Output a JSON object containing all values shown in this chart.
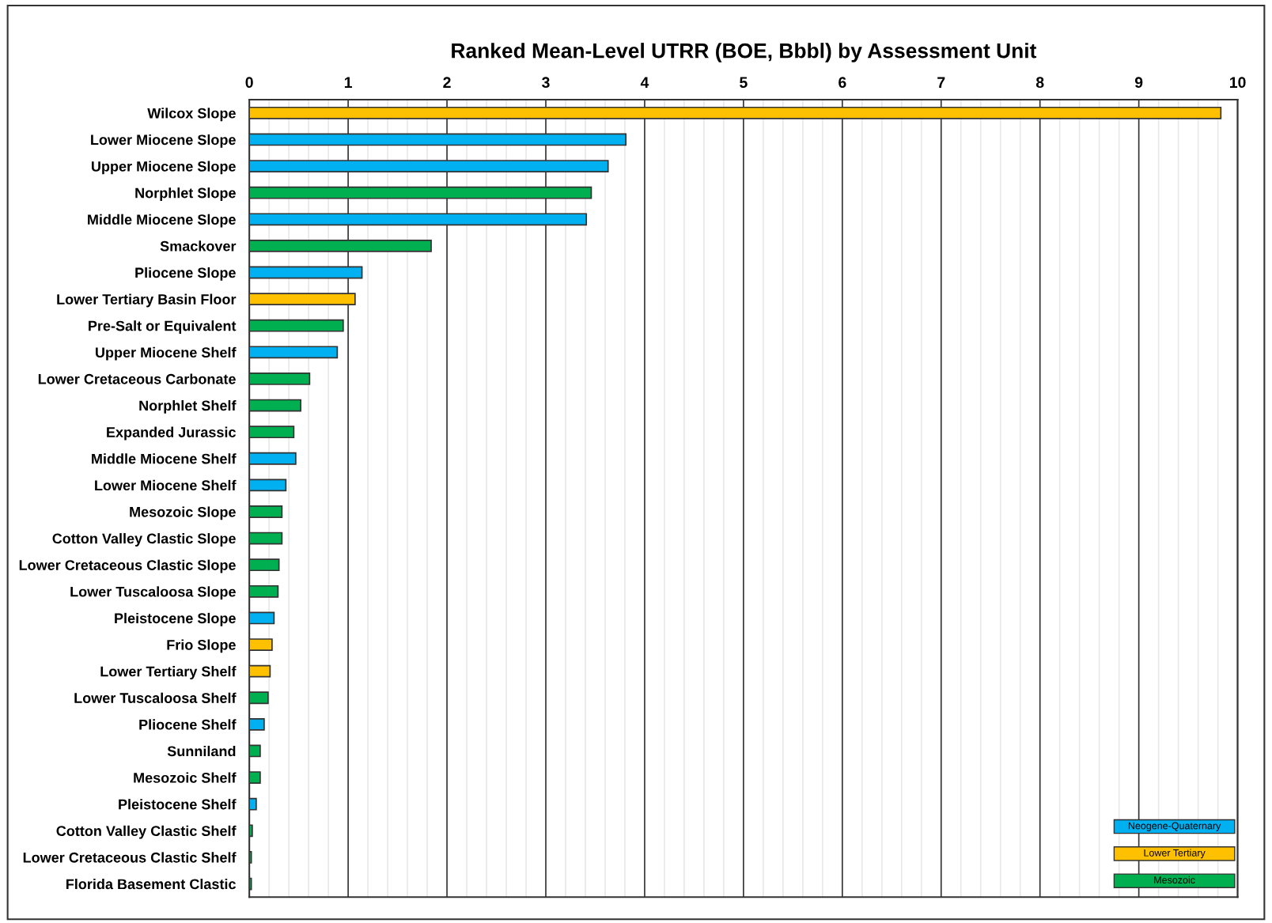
{
  "chart_data": {
    "type": "bar",
    "orientation": "horizontal",
    "title": "Ranked Mean-Level UTRR (BOE, Bbbl) by Assessment Unit",
    "categories": [
      "Wilcox Slope",
      "Lower Miocene Slope",
      "Upper Miocene Slope",
      "Norphlet Slope",
      "Middle Miocene Slope",
      "Smackover",
      "Pliocene Slope",
      "Lower Tertiary Basin Floor",
      "Pre-Salt or Equivalent",
      "Upper Miocene Shelf",
      "Lower Cretaceous Carbonate",
      "Norphlet Shelf",
      "Expanded Jurassic",
      "Middle Miocene Shelf",
      "Lower Miocene Shelf",
      "Mesozoic Slope",
      "Cotton Valley Clastic Slope",
      "Lower Cretaceous Clastic Slope",
      "Lower Tuscaloosa Slope",
      "Pleistocene Slope",
      "Frio Slope",
      "Lower Tertiary Shelf",
      "Lower Tuscaloosa Shelf",
      "Pliocene Shelf",
      "Sunniland",
      "Mesozoic Shelf",
      "Pleistocene Shelf",
      "Cotton Valley Clastic Shelf",
      "Lower Cretaceous Clastic Shelf",
      "Florida Basement Clastic"
    ],
    "series": [
      {
        "name": "Neogene-Quaternary",
        "color": "#00b0f0",
        "values": [
          null,
          3.81,
          3.63,
          null,
          3.41,
          null,
          1.14,
          null,
          null,
          0.89,
          null,
          null,
          null,
          0.47,
          0.37,
          null,
          null,
          null,
          null,
          0.25,
          null,
          null,
          null,
          0.15,
          null,
          null,
          0.07,
          null,
          null,
          null
        ]
      },
      {
        "name": "Lower Tertiary",
        "color": "#ffc000",
        "values": [
          9.83,
          null,
          null,
          null,
          null,
          null,
          null,
          1.07,
          null,
          null,
          null,
          null,
          null,
          null,
          null,
          null,
          null,
          null,
          null,
          null,
          0.23,
          0.21,
          null,
          null,
          null,
          null,
          null,
          null,
          null,
          null
        ]
      },
      {
        "name": "Mesozoic",
        "color": "#00b050",
        "values": [
          null,
          null,
          null,
          3.46,
          null,
          1.84,
          null,
          null,
          0.95,
          null,
          0.61,
          0.52,
          0.45,
          null,
          null,
          0.33,
          0.33,
          0.3,
          0.29,
          null,
          null,
          null,
          0.19,
          null,
          0.11,
          0.11,
          null,
          0.03,
          0.02,
          0.02
        ]
      }
    ],
    "xlim": [
      0,
      10
    ],
    "xticks": [
      0,
      1,
      2,
      3,
      4,
      5,
      6,
      7,
      8,
      9,
      10
    ],
    "grid": "x",
    "legend": "bottom right"
  }
}
